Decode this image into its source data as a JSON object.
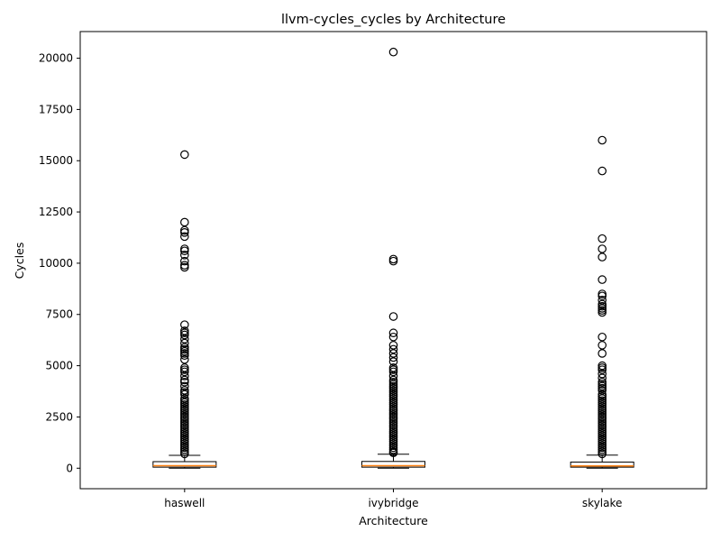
{
  "chart_data": {
    "type": "box",
    "title": "llvm-cycles_cycles by Architecture",
    "xlabel": "Architecture",
    "ylabel": "Cycles",
    "ylim": [
      -1000,
      21300
    ],
    "yticks": [
      0,
      2500,
      5000,
      7500,
      10000,
      12500,
      15000,
      17500,
      20000
    ],
    "grid": false,
    "categories": [
      "haswell",
      "ivybridge",
      "skylake"
    ],
    "boxes": [
      {
        "label": "haswell",
        "whisker_low": 0,
        "q1": 50,
        "median": 120,
        "q3": 320,
        "whisker_high": 630,
        "outliers": [
          15300,
          12000,
          11600,
          11500,
          11300,
          10700,
          10600,
          10400,
          10100,
          9900,
          9800,
          7000,
          6700,
          6600,
          6500,
          6300,
          6100,
          5900,
          5800,
          5700,
          5600,
          5500,
          5300,
          4900,
          4800,
          4700,
          4500,
          4300,
          4200,
          4000,
          3800,
          3700,
          3600,
          3400,
          3300,
          3200,
          3100,
          3000,
          2900,
          2800,
          2700,
          2600,
          2500,
          2400,
          2300,
          2200,
          2100,
          2000,
          1900,
          1800,
          1700,
          1600,
          1500,
          1400,
          1300,
          1200,
          1100,
          1000,
          900,
          800,
          700
        ]
      },
      {
        "label": "ivybridge",
        "whisker_low": 0,
        "q1": 50,
        "median": 120,
        "q3": 330,
        "whisker_high": 680,
        "outliers": [
          20300,
          10200,
          10100,
          7400,
          6600,
          6400,
          6000,
          5800,
          5600,
          5400,
          5200,
          4900,
          4800,
          4700,
          4500,
          4300,
          4200,
          4100,
          4000,
          3900,
          3800,
          3700,
          3600,
          3500,
          3400,
          3300,
          3200,
          3100,
          3000,
          2900,
          2800,
          2700,
          2600,
          2500,
          2400,
          2300,
          2200,
          2100,
          2000,
          1900,
          1800,
          1700,
          1600,
          1500,
          1400,
          1300,
          1200,
          1100,
          1000,
          900,
          800,
          750
        ]
      },
      {
        "label": "skylake",
        "whisker_low": 0,
        "q1": 50,
        "median": 110,
        "q3": 300,
        "whisker_high": 640,
        "outliers": [
          16000,
          14500,
          11200,
          10700,
          10300,
          9200,
          8500,
          8400,
          8200,
          8000,
          7900,
          7800,
          7700,
          7600,
          6400,
          6000,
          5600,
          5000,
          4900,
          4800,
          4600,
          4400,
          4200,
          4100,
          4000,
          3900,
          3800,
          3600,
          3500,
          3400,
          3300,
          3200,
          3100,
          3000,
          2900,
          2800,
          2700,
          2600,
          2500,
          2400,
          2300,
          2200,
          2100,
          2000,
          1900,
          1800,
          1700,
          1600,
          1500,
          1400,
          1300,
          1200,
          1100,
          1000,
          900,
          800,
          700
        ]
      }
    ],
    "colors": {
      "box": "#000000",
      "median": "#ff7f0e",
      "outlier": "#000000",
      "background": "#ffffff"
    }
  }
}
